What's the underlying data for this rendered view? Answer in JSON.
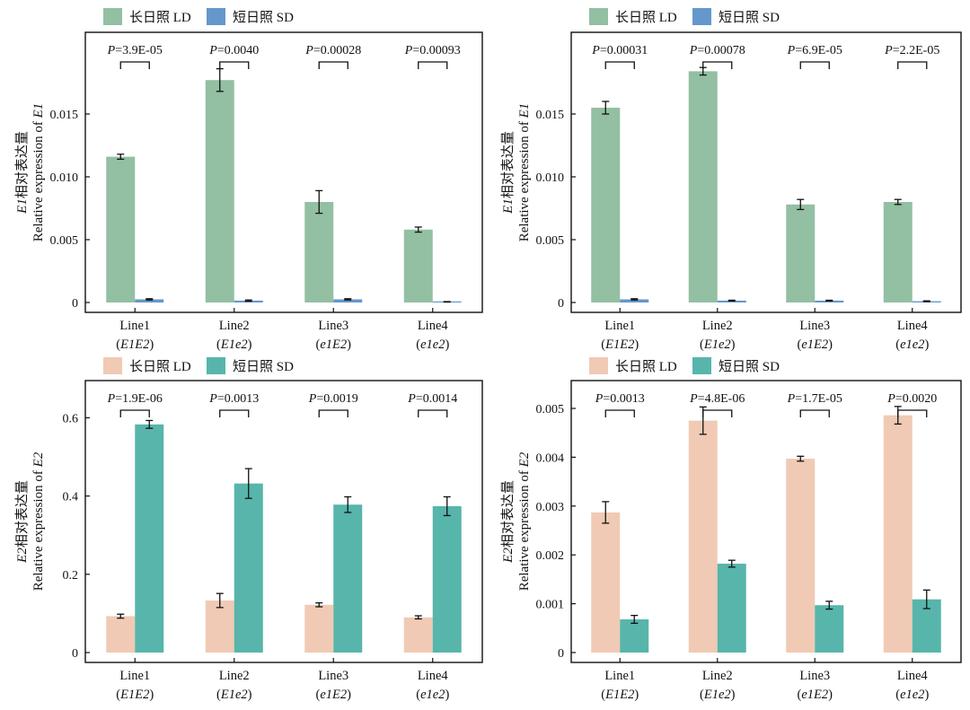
{
  "chart_data": [
    {
      "type": "bar",
      "title": "",
      "ylabel_cn": "相对表达量",
      "ylabel_gene": "E1",
      "ylabel_en": "Relative expression of ",
      "legend": [
        {
          "cn": "长日照",
          "en": "LD",
          "color": "#93BFA3"
        },
        {
          "cn": "短日照",
          "en": "SD",
          "color": "#6497CC"
        }
      ],
      "categories": [
        {
          "line": "Line1",
          "genotype": "E1E2"
        },
        {
          "line": "Line2",
          "genotype": "E1e2"
        },
        {
          "line": "Line3",
          "genotype": "e1E2"
        },
        {
          "line": "Line4",
          "genotype": "e1e2"
        }
      ],
      "series": [
        {
          "name": "LD",
          "values": [
            0.0116,
            0.0177,
            0.008,
            0.0058
          ],
          "errors": [
            0.0002,
            0.0009,
            0.0009,
            0.0002
          ]
        },
        {
          "name": "SD",
          "values": [
            0.00025,
            0.00015,
            0.00025,
            5e-05
          ],
          "errors": [
            5e-05,
            5e-05,
            5e-05,
            2e-05
          ]
        }
      ],
      "p_values": [
        "3.9E-05",
        "0.0040",
        "0.00028",
        "0.00093"
      ],
      "p_label": "P",
      "ylim": [
        0,
        0.0215
      ],
      "ticks": [
        0,
        0.005,
        0.01,
        0.015
      ],
      "tick_labels": [
        "0",
        "0.005",
        "0.010",
        "0.015"
      ]
    },
    {
      "type": "bar",
      "title": "",
      "ylabel_cn": "相对表达量",
      "ylabel_gene": "E1",
      "ylabel_en": "Relative expression of ",
      "legend": [
        {
          "cn": "长日照",
          "en": "LD",
          "color": "#93BFA3"
        },
        {
          "cn": "短日照",
          "en": "SD",
          "color": "#6497CC"
        }
      ],
      "categories": [
        {
          "line": "Line1",
          "genotype": "E1E2"
        },
        {
          "line": "Line2",
          "genotype": "E1e2"
        },
        {
          "line": "Line3",
          "genotype": "e1E2"
        },
        {
          "line": "Line4",
          "genotype": "e1e2"
        }
      ],
      "series": [
        {
          "name": "LD",
          "values": [
            0.0155,
            0.0184,
            0.0078,
            0.008
          ],
          "errors": [
            0.0005,
            0.0003,
            0.0004,
            0.0002
          ]
        },
        {
          "name": "SD",
          "values": [
            0.00025,
            0.00015,
            0.00015,
            0.0001
          ],
          "errors": [
            5e-05,
            3e-05,
            3e-05,
            3e-05
          ]
        }
      ],
      "p_values": [
        "0.00031",
        "0.00078",
        "6.9E-05",
        "2.2E-05"
      ],
      "p_label": "P",
      "ylim": [
        0,
        0.0215
      ],
      "ticks": [
        0,
        0.005,
        0.01,
        0.015
      ],
      "tick_labels": [
        "0",
        "0.005",
        "0.010",
        "0.015"
      ]
    },
    {
      "type": "bar",
      "title": "",
      "ylabel_cn": "相对表达量",
      "ylabel_gene": "E2",
      "ylabel_en": "Relative expression of ",
      "legend": [
        {
          "cn": "长日照",
          "en": "LD",
          "color": "#F0CAB4"
        },
        {
          "cn": "短日照",
          "en": "SD",
          "color": "#57B5AB"
        }
      ],
      "categories": [
        {
          "line": "Line1",
          "genotype": "E1E2"
        },
        {
          "line": "Line2",
          "genotype": "E1e2"
        },
        {
          "line": "Line3",
          "genotype": "e1E2"
        },
        {
          "line": "Line4",
          "genotype": "e1e2"
        }
      ],
      "series": [
        {
          "name": "LD",
          "values": [
            0.093,
            0.133,
            0.122,
            0.09
          ],
          "errors": [
            0.005,
            0.018,
            0.005,
            0.004
          ]
        },
        {
          "name": "SD",
          "values": [
            0.583,
            0.432,
            0.378,
            0.374
          ],
          "errors": [
            0.01,
            0.038,
            0.02,
            0.024
          ]
        }
      ],
      "p_values": [
        "1.9E-06",
        "0.0013",
        "0.0019",
        "0.0014"
      ],
      "p_label": "P",
      "ylim": [
        0,
        0.695
      ],
      "ticks": [
        0,
        0.2,
        0.4,
        0.6
      ],
      "tick_labels": [
        "0",
        "0.2",
        "0.4",
        "0.6"
      ]
    },
    {
      "type": "bar",
      "title": "",
      "ylabel_cn": "相对表达量",
      "ylabel_gene": "E2",
      "ylabel_en": "Relative expression of ",
      "legend": [
        {
          "cn": "长日照",
          "en": "LD",
          "color": "#F0CAB4"
        },
        {
          "cn": "短日照",
          "en": "SD",
          "color": "#57B5AB"
        }
      ],
      "categories": [
        {
          "line": "Line1",
          "genotype": "E1E2"
        },
        {
          "line": "Line2",
          "genotype": "E1e2"
        },
        {
          "line": "Line3",
          "genotype": "e1E2"
        },
        {
          "line": "Line4",
          "genotype": "e1e2"
        }
      ],
      "series": [
        {
          "name": "LD",
          "values": [
            0.00287,
            0.00475,
            0.00397,
            0.00486
          ],
          "errors": [
            0.00022,
            0.00028,
            5e-05,
            0.00018
          ]
        },
        {
          "name": "SD",
          "values": [
            0.00068,
            0.00182,
            0.00097,
            0.00109
          ],
          "errors": [
            8e-05,
            7e-05,
            8e-05,
            0.00019
          ]
        }
      ],
      "p_values": [
        "0.0013",
        "4.8E-06",
        "1.7E-05",
        "0.0020"
      ],
      "p_label": "P",
      "ylim": [
        0,
        0.00557
      ],
      "ticks": [
        0,
        0.001,
        0.002,
        0.003,
        0.004,
        0.005
      ],
      "tick_labels": [
        "0",
        "0.001",
        "0.002",
        "0.003",
        "0.004",
        "0.005"
      ]
    }
  ]
}
